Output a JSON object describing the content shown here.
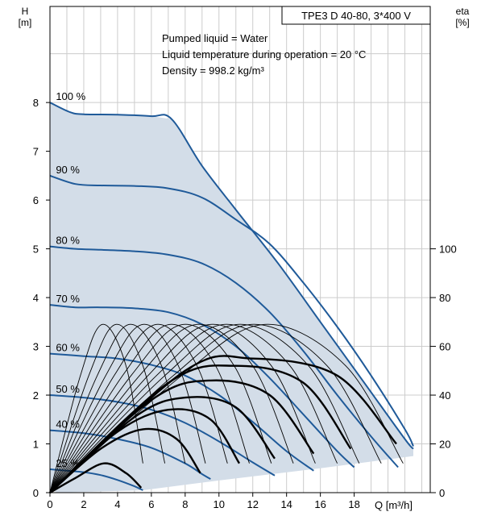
{
  "chart_data": {
    "type": "line",
    "title": "TPE3 D 40-80, 3*400 V",
    "notes": [
      "Pumped liquid = Water",
      "Liquid temperature during operation = 20 °C",
      "Density = 998.2 kg/m³"
    ],
    "xlabel": "Q [m³/h]",
    "ylabel_left": {
      "name": "H",
      "unit": "[m]"
    },
    "ylabel_right": {
      "name": "eta",
      "unit": "[%]"
    },
    "xlim": [
      0,
      22.5
    ],
    "ylim_left": [
      0,
      9.97
    ],
    "ylim_right": [
      0,
      199.4
    ],
    "x_ticks": [
      0,
      2,
      4,
      6,
      8,
      10,
      12,
      14,
      16,
      18
    ],
    "y_ticks_left": [
      0,
      1,
      2,
      3,
      4,
      5,
      6,
      7,
      8
    ],
    "y_ticks_right": [
      0,
      20,
      40,
      60,
      80,
      100
    ],
    "grid": true,
    "colors": {
      "head_curve": "#1f5a99",
      "envelope_fill": "#d3dde8",
      "efficiency_curve": "#000000",
      "grid": "#cccccc"
    },
    "head_curves": [
      {
        "speed_label": "100 %",
        "points": [
          [
            0,
            8.0
          ],
          [
            1.2,
            7.8
          ],
          [
            2.0,
            7.76
          ],
          [
            4.0,
            7.75
          ],
          [
            6.0,
            7.72
          ],
          [
            7.2,
            7.66
          ],
          [
            9.0,
            6.7
          ],
          [
            11.0,
            5.8
          ],
          [
            13.5,
            4.7
          ],
          [
            16.0,
            3.5
          ],
          [
            18.5,
            2.3
          ],
          [
            21.0,
            1.1
          ],
          [
            21.5,
            0.9
          ]
        ]
      },
      {
        "speed_label": "90 %",
        "points": [
          [
            0,
            6.5
          ],
          [
            1.5,
            6.33
          ],
          [
            3.0,
            6.3
          ],
          [
            5.0,
            6.29
          ],
          [
            7.0,
            6.24
          ],
          [
            9.0,
            6.05
          ],
          [
            11.0,
            5.6
          ],
          [
            13.0,
            5.1
          ],
          [
            15.0,
            4.3
          ],
          [
            17.0,
            3.4
          ],
          [
            19.0,
            2.4
          ],
          [
            21.0,
            1.3
          ],
          [
            21.5,
            0.95
          ]
        ]
      },
      {
        "speed_label": "80 %",
        "points": [
          [
            0,
            5.05
          ],
          [
            1.5,
            5.0
          ],
          [
            3.0,
            4.98
          ],
          [
            5.0,
            4.95
          ],
          [
            7.0,
            4.88
          ],
          [
            9.0,
            4.7
          ],
          [
            11.0,
            4.3
          ],
          [
            13.0,
            3.7
          ],
          [
            15.0,
            2.9
          ],
          [
            17.0,
            2.0
          ],
          [
            19.0,
            1.15
          ],
          [
            20.6,
            0.52
          ]
        ]
      },
      {
        "speed_label": "70 %",
        "points": [
          [
            0,
            3.85
          ],
          [
            1.5,
            3.8
          ],
          [
            3.0,
            3.8
          ],
          [
            5.0,
            3.78
          ],
          [
            7.0,
            3.7
          ],
          [
            9.0,
            3.45
          ],
          [
            11.0,
            3.0
          ],
          [
            13.0,
            2.35
          ],
          [
            15.0,
            1.6
          ],
          [
            17.0,
            0.85
          ],
          [
            18.0,
            0.52
          ]
        ]
      },
      {
        "speed_label": "60 %",
        "points": [
          [
            0,
            2.85
          ],
          [
            2.0,
            2.8
          ],
          [
            4.0,
            2.75
          ],
          [
            6.0,
            2.62
          ],
          [
            8.0,
            2.4
          ],
          [
            10.0,
            2.0
          ],
          [
            12.0,
            1.45
          ],
          [
            14.0,
            0.85
          ],
          [
            15.6,
            0.45
          ]
        ]
      },
      {
        "speed_label": "50 %",
        "points": [
          [
            0,
            2.0
          ],
          [
            2.0,
            1.95
          ],
          [
            4.0,
            1.86
          ],
          [
            6.0,
            1.7
          ],
          [
            8.0,
            1.43
          ],
          [
            10.0,
            1.05
          ],
          [
            12.0,
            0.62
          ],
          [
            13.3,
            0.35
          ]
        ]
      },
      {
        "speed_label": "40 %",
        "points": [
          [
            0,
            1.28
          ],
          [
            2.0,
            1.22
          ],
          [
            4.0,
            1.1
          ],
          [
            6.0,
            0.92
          ],
          [
            8.0,
            0.6
          ],
          [
            9.0,
            0.38
          ],
          [
            9.5,
            0.28
          ]
        ]
      },
      {
        "speed_label": "25 %",
        "points": [
          [
            0,
            0.48
          ],
          [
            1.0,
            0.45
          ],
          [
            2.0,
            0.42
          ],
          [
            3.0,
            0.36
          ],
          [
            4.0,
            0.26
          ],
          [
            5.0,
            0.13
          ],
          [
            5.5,
            0.05
          ]
        ]
      }
    ],
    "efficiency_curves_thick": [
      {
        "points": [
          [
            0,
            0
          ],
          [
            1.5,
            6
          ],
          [
            3.2,
            12
          ],
          [
            4.5,
            8
          ],
          [
            5.4,
            2
          ]
        ]
      },
      {
        "points": [
          [
            0,
            0
          ],
          [
            3,
            18
          ],
          [
            5.5,
            26
          ],
          [
            7.5,
            22
          ],
          [
            8.9,
            8
          ]
        ]
      },
      {
        "points": [
          [
            0,
            0
          ],
          [
            4,
            25
          ],
          [
            7,
            34
          ],
          [
            9.5,
            30
          ],
          [
            11.2,
            12
          ]
        ]
      },
      {
        "points": [
          [
            0,
            0
          ],
          [
            5,
            31
          ],
          [
            8,
            39
          ],
          [
            11,
            35
          ],
          [
            13.3,
            14
          ]
        ]
      },
      {
        "points": [
          [
            0,
            0
          ],
          [
            6,
            38
          ],
          [
            9.5,
            46
          ],
          [
            13,
            40
          ],
          [
            15.6,
            16
          ]
        ]
      },
      {
        "points": [
          [
            0,
            0
          ],
          [
            7,
            45
          ],
          [
            11,
            52
          ],
          [
            15,
            45
          ],
          [
            17.8,
            18
          ]
        ]
      },
      {
        "points": [
          [
            0,
            0
          ],
          [
            8,
            50
          ],
          [
            12,
            55
          ],
          [
            17,
            48
          ],
          [
            20.5,
            20
          ]
        ]
      }
    ],
    "efficiency_curves_thin": [
      {
        "points": [
          [
            0,
            0
          ],
          [
            1.8,
            48
          ],
          [
            3.1,
            69
          ],
          [
            4.5,
            52
          ],
          [
            5.5,
            12
          ]
        ]
      },
      {
        "points": [
          [
            0,
            0
          ],
          [
            2.3,
            48
          ],
          [
            3.9,
            69
          ],
          [
            5.5,
            52
          ],
          [
            6.8,
            12
          ]
        ]
      },
      {
        "points": [
          [
            0,
            0
          ],
          [
            2.8,
            48
          ],
          [
            4.7,
            69
          ],
          [
            6.6,
            52
          ],
          [
            8.0,
            12
          ]
        ]
      },
      {
        "points": [
          [
            0,
            0
          ],
          [
            3.3,
            48
          ],
          [
            5.5,
            69
          ],
          [
            7.6,
            52
          ],
          [
            9.2,
            12
          ]
        ]
      },
      {
        "points": [
          [
            0,
            0
          ],
          [
            3.8,
            48
          ],
          [
            6.3,
            69
          ],
          [
            8.7,
            52
          ],
          [
            10.5,
            12
          ]
        ]
      },
      {
        "points": [
          [
            0,
            0
          ],
          [
            4.3,
            48
          ],
          [
            7.1,
            69
          ],
          [
            9.8,
            52
          ],
          [
            11.8,
            12
          ]
        ]
      },
      {
        "points": [
          [
            0,
            0
          ],
          [
            4.8,
            48
          ],
          [
            7.9,
            69
          ],
          [
            10.9,
            52
          ],
          [
            13.1,
            12
          ]
        ]
      },
      {
        "points": [
          [
            0,
            0
          ],
          [
            5.3,
            48
          ],
          [
            8.7,
            69
          ],
          [
            12.0,
            52
          ],
          [
            14.4,
            12
          ]
        ]
      },
      {
        "points": [
          [
            0,
            0
          ],
          [
            5.8,
            48
          ],
          [
            9.5,
            69
          ],
          [
            13.1,
            52
          ],
          [
            15.7,
            12
          ]
        ]
      },
      {
        "points": [
          [
            0,
            0
          ],
          [
            6.3,
            48
          ],
          [
            10.3,
            69
          ],
          [
            14.2,
            52
          ],
          [
            17.0,
            12
          ]
        ]
      },
      {
        "points": [
          [
            0,
            0
          ],
          [
            6.8,
            48
          ],
          [
            11.1,
            69
          ],
          [
            15.3,
            52
          ],
          [
            18.3,
            12
          ]
        ]
      },
      {
        "points": [
          [
            0,
            0
          ],
          [
            7.3,
            48
          ],
          [
            11.9,
            69
          ],
          [
            16.4,
            52
          ],
          [
            19.6,
            12
          ]
        ]
      },
      {
        "points": [
          [
            0,
            0
          ],
          [
            7.8,
            48
          ],
          [
            12.7,
            69
          ],
          [
            17.5,
            52
          ],
          [
            20.9,
            12
          ]
        ]
      }
    ],
    "envelope": [
      [
        0,
        8.0
      ],
      [
        1.2,
        7.8
      ],
      [
        2.0,
        7.76
      ],
      [
        4.0,
        7.75
      ],
      [
        6.0,
        7.72
      ],
      [
        7.2,
        7.66
      ],
      [
        9.0,
        6.7
      ],
      [
        11.0,
        5.8
      ],
      [
        13.5,
        4.7
      ],
      [
        16.0,
        3.5
      ],
      [
        18.5,
        2.3
      ],
      [
        21.0,
        1.1
      ],
      [
        21.5,
        0.9
      ],
      [
        21.5,
        0.75
      ],
      [
        16.0,
        0.5
      ],
      [
        10.0,
        0.25
      ],
      [
        5.5,
        0.05
      ],
      [
        0.4,
        0.0
      ],
      [
        0,
        0.1
      ]
    ]
  }
}
